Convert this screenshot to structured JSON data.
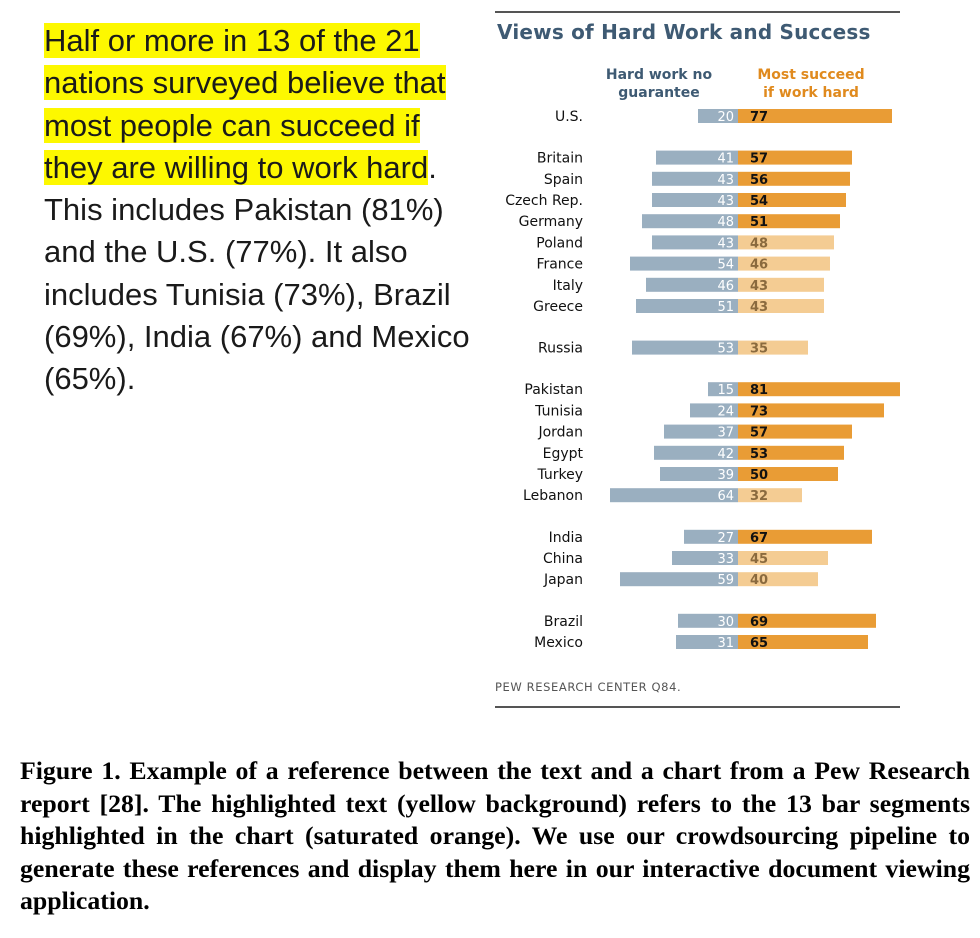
{
  "text": {
    "highlighted": "Half or more in 13 of the 21 nations surveyed believe that most people can succeed if they are willing to work hard",
    "rest": ". This includes Pakistan (81%) and the U.S. (77%). It also includes Tunisia (73%), Brazil (69%), India (67%) and Mexico (65%)."
  },
  "chart_data": {
    "type": "bar",
    "title": "Views of Hard Work and Success",
    "source": "PEW RESEARCH CENTER Q84.",
    "series": [
      {
        "name": "Hard work no guarantee",
        "color": "#9aafc0"
      },
      {
        "name": "Most succeed if work hard",
        "color": "#e99c35",
        "light_color": "#f4cc93"
      }
    ],
    "groups": [
      {
        "rows": [
          {
            "country": "U.S.",
            "no_guarantee": 20,
            "succeed": 77,
            "highlight": true
          }
        ]
      },
      {
        "rows": [
          {
            "country": "Britain",
            "no_guarantee": 41,
            "succeed": 57,
            "highlight": true
          },
          {
            "country": "Spain",
            "no_guarantee": 43,
            "succeed": 56,
            "highlight": true
          },
          {
            "country": "Czech Rep.",
            "no_guarantee": 43,
            "succeed": 54,
            "highlight": true
          },
          {
            "country": "Germany",
            "no_guarantee": 48,
            "succeed": 51,
            "highlight": true
          },
          {
            "country": "Poland",
            "no_guarantee": 43,
            "succeed": 48,
            "highlight": false
          },
          {
            "country": "France",
            "no_guarantee": 54,
            "succeed": 46,
            "highlight": false
          },
          {
            "country": "Italy",
            "no_guarantee": 46,
            "succeed": 43,
            "highlight": false
          },
          {
            "country": "Greece",
            "no_guarantee": 51,
            "succeed": 43,
            "highlight": false
          }
        ]
      },
      {
        "rows": [
          {
            "country": "Russia",
            "no_guarantee": 53,
            "succeed": 35,
            "highlight": false
          }
        ]
      },
      {
        "rows": [
          {
            "country": "Pakistan",
            "no_guarantee": 15,
            "succeed": 81,
            "highlight": true
          },
          {
            "country": "Tunisia",
            "no_guarantee": 24,
            "succeed": 73,
            "highlight": true
          },
          {
            "country": "Jordan",
            "no_guarantee": 37,
            "succeed": 57,
            "highlight": true
          },
          {
            "country": "Egypt",
            "no_guarantee": 42,
            "succeed": 53,
            "highlight": true
          },
          {
            "country": "Turkey",
            "no_guarantee": 39,
            "succeed": 50,
            "highlight": true
          },
          {
            "country": "Lebanon",
            "no_guarantee": 64,
            "succeed": 32,
            "highlight": false
          }
        ]
      },
      {
        "rows": [
          {
            "country": "India",
            "no_guarantee": 27,
            "succeed": 67,
            "highlight": true
          },
          {
            "country": "China",
            "no_guarantee": 33,
            "succeed": 45,
            "highlight": false
          },
          {
            "country": "Japan",
            "no_guarantee": 59,
            "succeed": 40,
            "highlight": false
          }
        ]
      },
      {
        "rows": [
          {
            "country": "Brazil",
            "no_guarantee": 30,
            "succeed": 69,
            "highlight": true
          },
          {
            "country": "Mexico",
            "no_guarantee": 31,
            "succeed": 65,
            "highlight": true
          }
        ]
      }
    ]
  },
  "caption": "Figure 1.  Example of a reference between the text and a chart from a Pew Research report [28]. The highlighted text (yellow background) refers to the 13 bar segments highlighted in the chart (saturated orange). We use our crowdsourcing pipeline to generate these references and display them here in our interactive document viewing application."
}
